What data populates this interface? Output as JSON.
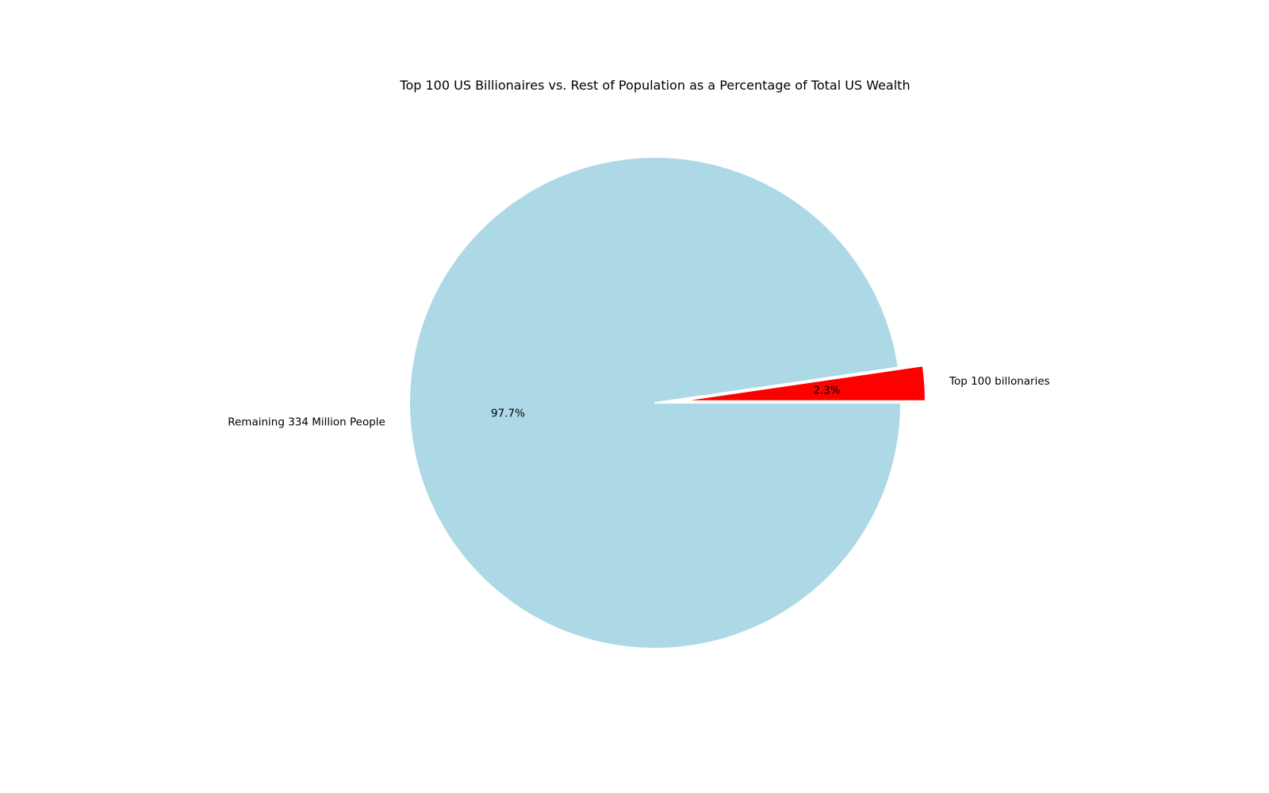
{
  "chart_data": {
    "type": "pie",
    "title": "Top 100 US Billionaires vs. Rest of Population as a Percentage of Total US Wealth",
    "slices": [
      {
        "label": "Top 100 billonaries",
        "value": 2.3,
        "pct_label": "2.3%",
        "color": "#ff0000",
        "exploded": true
      },
      {
        "label": "Remaining 334 Million People",
        "value": 97.7,
        "pct_label": "97.7%",
        "color": "#add8e6",
        "exploded": false
      }
    ],
    "start_angle_deg": 0,
    "direction": "counterclockwise",
    "legend": "none"
  }
}
